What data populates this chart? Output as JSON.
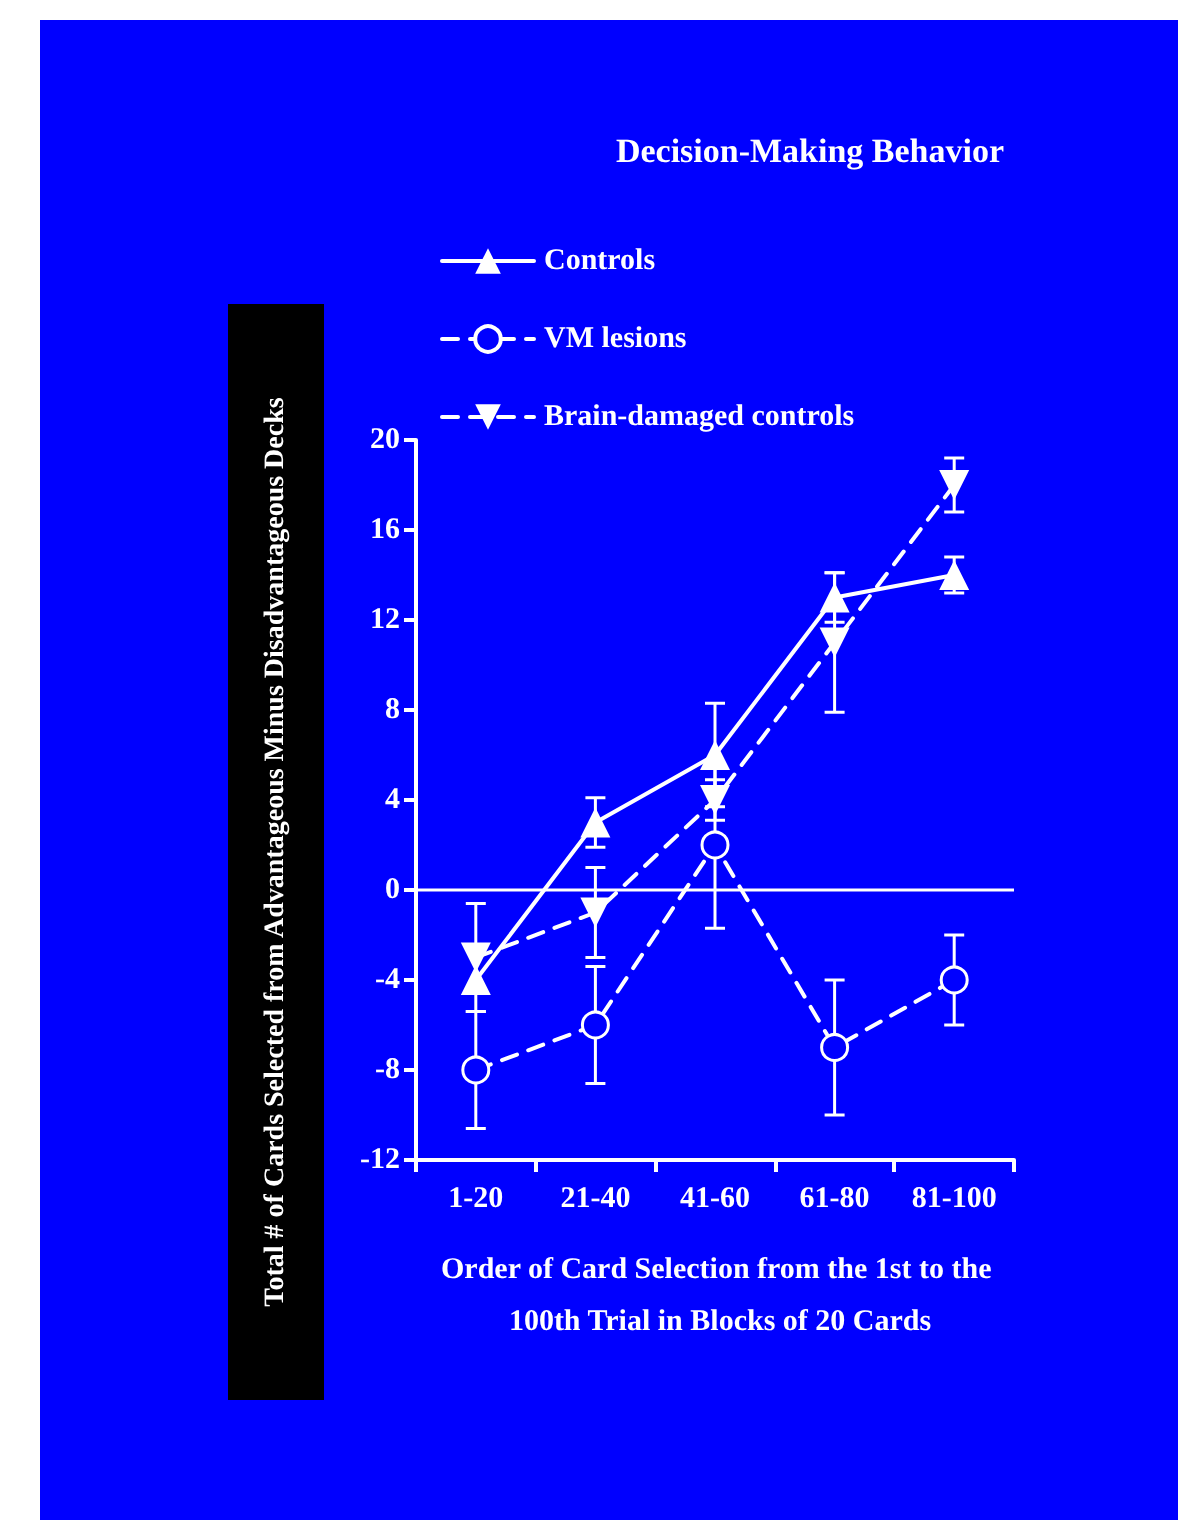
{
  "chart_data": {
    "type": "line",
    "title": "Decision-Making Behavior",
    "xlabel": "Order of Card Selection from the 1st to the 100th Trial in Blocks of 20 Cards",
    "ylabel": "Total # of Cards Selected from Advantageous Minus Disadvantageous Decks",
    "categories": [
      "1-20",
      "21-40",
      "41-60",
      "61-80",
      "81-100"
    ],
    "series": [
      {
        "name": "Controls",
        "color": "#ffffff",
        "marker": "triangle",
        "line_style": "solid",
        "values": [
          -4,
          3,
          6,
          13,
          14
        ],
        "errors": [
          null,
          1.1,
          2.3,
          1.1,
          0.8
        ]
      },
      {
        "name": "VM lesions",
        "color": "#ffffff",
        "marker": "circle",
        "line_style": "dashed",
        "values": [
          -8,
          -6,
          2,
          -7,
          -4
        ],
        "errors": [
          2.6,
          2.6,
          3.7,
          3,
          2
        ]
      },
      {
        "name": "Brain-damaged controls",
        "color": "#ffffff",
        "marker": "triangle-down",
        "line_style": "dashed",
        "values": [
          -3,
          -1,
          4,
          11,
          18
        ],
        "errors": [
          2.4,
          2,
          0.9,
          3.1,
          1.2
        ]
      }
    ],
    "ylim": [
      -12,
      20
    ],
    "yticks": [
      -12,
      -8,
      -4,
      0,
      4,
      8,
      12,
      16,
      20
    ],
    "grid": false,
    "legend": "top left",
    "ref_lines": [
      {
        "axis": "y",
        "value": 0,
        "color": "#ffffff"
      }
    ]
  }
}
